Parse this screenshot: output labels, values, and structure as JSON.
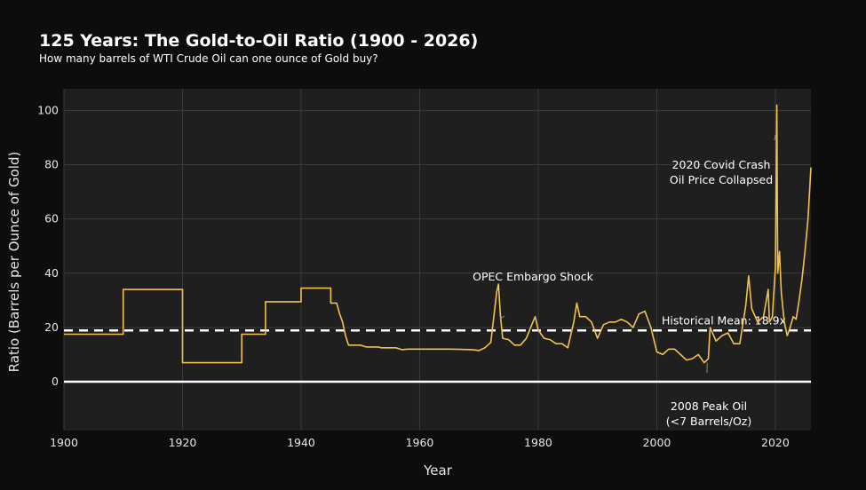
{
  "chart_data": {
    "type": "line",
    "title": "125 Years: The Gold-to-Oil Ratio (1900 - 2026)",
    "subtitle": "How many barrels of WTI Crude Oil can one ounce of Gold buy?",
    "xlabel": "Year",
    "ylabel": "Ratio (Barrels per Ounce of Gold)",
    "xlim": [
      1900,
      2026
    ],
    "ylim": [
      -18,
      108
    ],
    "xticks": [
      "1900",
      "1920",
      "1940",
      "1960",
      "1980",
      "2000",
      "2020"
    ],
    "yticks": [
      "0",
      "20",
      "40",
      "60",
      "80",
      "100"
    ],
    "grid": true,
    "colors": {
      "line": "#f2c14e",
      "mean_line": "#ffffff",
      "zero_line": "#ffffff",
      "plot_bg": "#1f1f1f",
      "page_bg": "#0d0d0d",
      "grid": "#3a3a3a"
    },
    "mean": {
      "value": 18.9,
      "label": "Historical Mean: 18.9x"
    },
    "annotations": [
      {
        "lines": [
          "OPEC Embargo Shock"
        ],
        "x": 1973.5,
        "y": 23
      },
      {
        "lines": [
          "2020 Covid Crash",
          "Oil Price Collapsed"
        ],
        "x": 2020,
        "y": 91
      },
      {
        "lines": [
          "2008 Peak Oil",
          "(<7 Barrels/Oz)"
        ],
        "x": 2008.5,
        "y": 7
      }
    ],
    "series": [
      {
        "values": [
          [
            1900,
            17.5
          ],
          [
            1910,
            17.5
          ],
          [
            1910,
            34
          ],
          [
            1920,
            34
          ],
          [
            1920,
            7
          ],
          [
            1930,
            7
          ],
          [
            1930,
            17.5
          ],
          [
            1934,
            17.5
          ],
          [
            1934,
            29.5
          ],
          [
            1940,
            29.5
          ],
          [
            1940,
            34.5
          ],
          [
            1945,
            34.5
          ],
          [
            1945,
            29
          ],
          [
            1946,
            29
          ],
          [
            1946.5,
            25
          ],
          [
            1947,
            22
          ],
          [
            1947.5,
            17
          ],
          [
            1948,
            13.5
          ],
          [
            1949,
            13.5
          ],
          [
            1950,
            13.5
          ],
          [
            1951,
            12.8
          ],
          [
            1953,
            12.8
          ],
          [
            1953.5,
            12.5
          ],
          [
            1956,
            12.5
          ],
          [
            1957,
            11.8
          ],
          [
            1958,
            12
          ],
          [
            1960,
            12
          ],
          [
            1965,
            12
          ],
          [
            1969,
            11.8
          ],
          [
            1970,
            11.5
          ],
          [
            1971,
            12.5
          ],
          [
            1972,
            14.5
          ],
          [
            1973,
            33
          ],
          [
            1973.3,
            36
          ],
          [
            1973.6,
            25
          ],
          [
            1974,
            16
          ],
          [
            1975,
            15.5
          ],
          [
            1976,
            13.5
          ],
          [
            1977,
            13.5
          ],
          [
            1978,
            16
          ],
          [
            1979,
            21.5
          ],
          [
            1979.5,
            24
          ],
          [
            1980,
            19
          ],
          [
            1981,
            16
          ],
          [
            1982,
            15.5
          ],
          [
            1983,
            14
          ],
          [
            1984,
            14
          ],
          [
            1985,
            12.5
          ],
          [
            1986,
            22
          ],
          [
            1986.5,
            29
          ],
          [
            1987,
            24
          ],
          [
            1988,
            24
          ],
          [
            1989,
            22
          ],
          [
            1990,
            16
          ],
          [
            1991,
            21
          ],
          [
            1992,
            22
          ],
          [
            1993,
            22
          ],
          [
            1994,
            23
          ],
          [
            1995,
            22
          ],
          [
            1996,
            20
          ],
          [
            1997,
            25
          ],
          [
            1998,
            26
          ],
          [
            1999,
            20
          ],
          [
            2000,
            11
          ],
          [
            2001,
            10
          ],
          [
            2002,
            12
          ],
          [
            2003,
            12
          ],
          [
            2004,
            10
          ],
          [
            2005,
            8
          ],
          [
            2006,
            8.5
          ],
          [
            2007,
            10
          ],
          [
            2008,
            7
          ],
          [
            2008.7,
            8.5
          ],
          [
            2009,
            20
          ],
          [
            2010,
            15
          ],
          [
            2011,
            17
          ],
          [
            2012,
            18
          ],
          [
            2013,
            14
          ],
          [
            2014,
            14
          ],
          [
            2015,
            28
          ],
          [
            2015.5,
            39
          ],
          [
            2016,
            27
          ],
          [
            2017,
            22
          ],
          [
            2018,
            24
          ],
          [
            2018.8,
            34
          ],
          [
            2019,
            22
          ],
          [
            2019.5,
            24
          ],
          [
            2020,
            42
          ],
          [
            2020.25,
            102
          ],
          [
            2020.4,
            40
          ],
          [
            2020.7,
            48
          ],
          [
            2021,
            33
          ],
          [
            2021.5,
            22
          ],
          [
            2022,
            17
          ],
          [
            2022.5,
            20
          ],
          [
            2023,
            24
          ],
          [
            2023.5,
            23
          ],
          [
            2024,
            30
          ],
          [
            2024.5,
            38
          ],
          [
            2025,
            48
          ],
          [
            2025.5,
            60
          ],
          [
            2026,
            79
          ]
        ]
      }
    ]
  }
}
